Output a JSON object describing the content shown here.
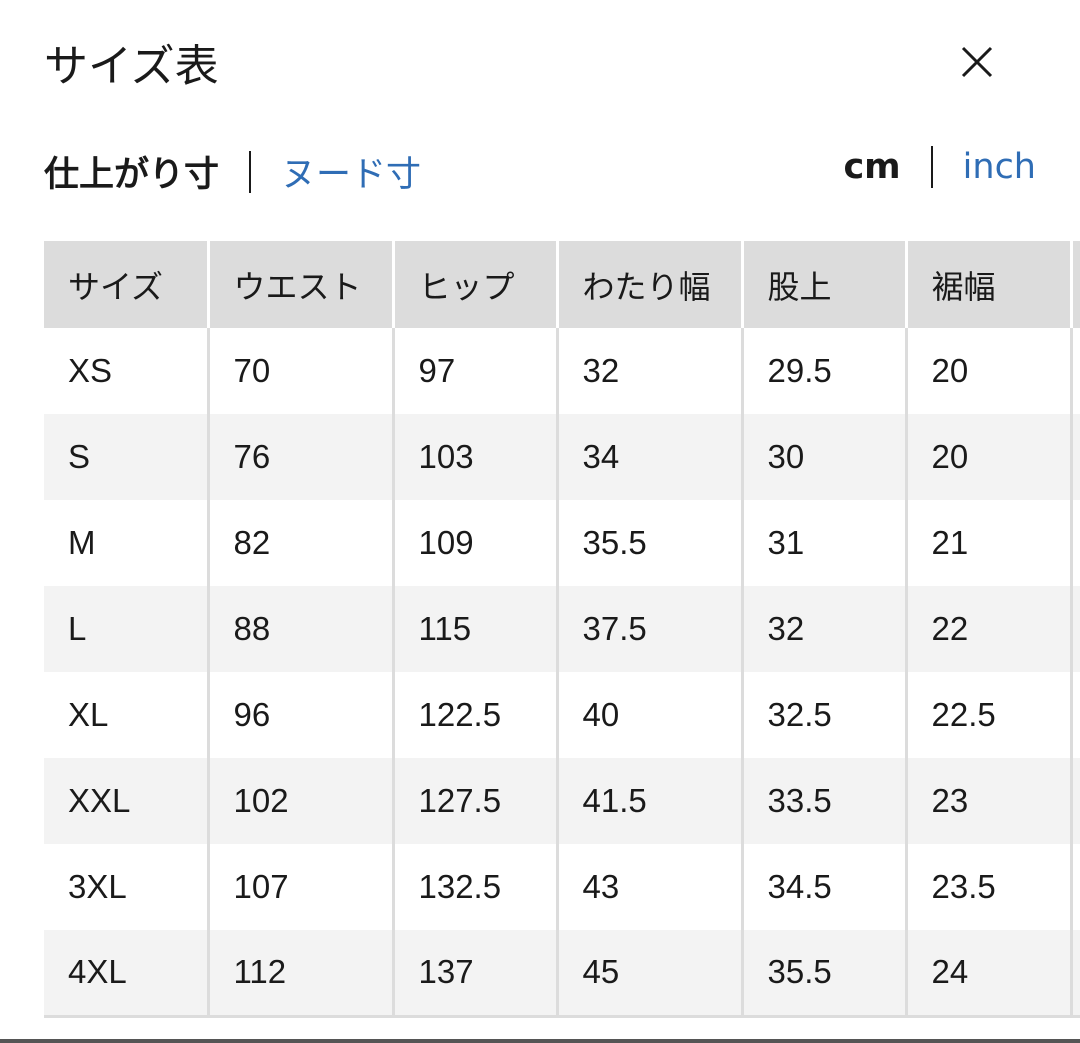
{
  "title": "サイズ表",
  "close_icon": "close-icon",
  "measure_tabs": [
    {
      "label": "仕上がり寸",
      "active": true
    },
    {
      "label": "ヌード寸",
      "active": false
    }
  ],
  "unit_tabs": [
    {
      "label": "cm",
      "active": true
    },
    {
      "label": "inch",
      "active": false
    }
  ],
  "colors": {
    "link": "#2f6db5",
    "header_bg": "#dcdcdc",
    "stripe": "#f3f3f3"
  },
  "table": {
    "headers": [
      "サイズ",
      "ウエスト",
      "ヒップ",
      "わたり幅",
      "股上",
      "裾幅",
      ""
    ],
    "rows": [
      [
        "XS",
        "70",
        "97",
        "32",
        "29.5",
        "20"
      ],
      [
        "S",
        "76",
        "103",
        "34",
        "30",
        "20"
      ],
      [
        "M",
        "82",
        "109",
        "35.5",
        "31",
        "21"
      ],
      [
        "L",
        "88",
        "115",
        "37.5",
        "32",
        "22"
      ],
      [
        "XL",
        "96",
        "122.5",
        "40",
        "32.5",
        "22.5"
      ],
      [
        "XXL",
        "102",
        "127.5",
        "41.5",
        "33.5",
        "23"
      ],
      [
        "3XL",
        "107",
        "132.5",
        "43",
        "34.5",
        "23.5"
      ],
      [
        "4XL",
        "112",
        "137",
        "45",
        "35.5",
        "24"
      ]
    ]
  }
}
